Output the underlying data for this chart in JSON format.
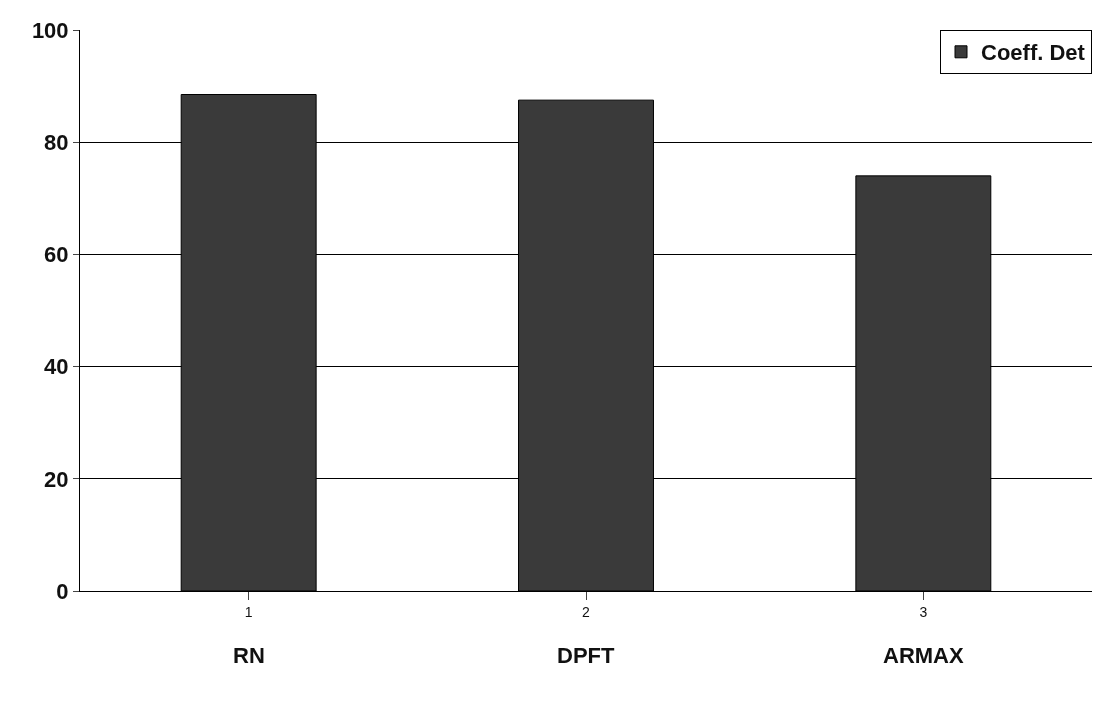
{
  "chart_data": {
    "type": "bar",
    "categories": [
      "1",
      "2",
      "3"
    ],
    "series": [
      {
        "name": "Coeff. Det",
        "color": "#3a3a3a",
        "values": [
          88.5,
          87.5,
          74
        ]
      }
    ],
    "annotations": [
      "RN",
      "DPFT",
      "ARMAX"
    ],
    "ylim": [
      0,
      100
    ],
    "yticks": [
      0,
      20,
      40,
      60,
      80,
      100
    ],
    "grid": "y",
    "legend": "top right"
  }
}
